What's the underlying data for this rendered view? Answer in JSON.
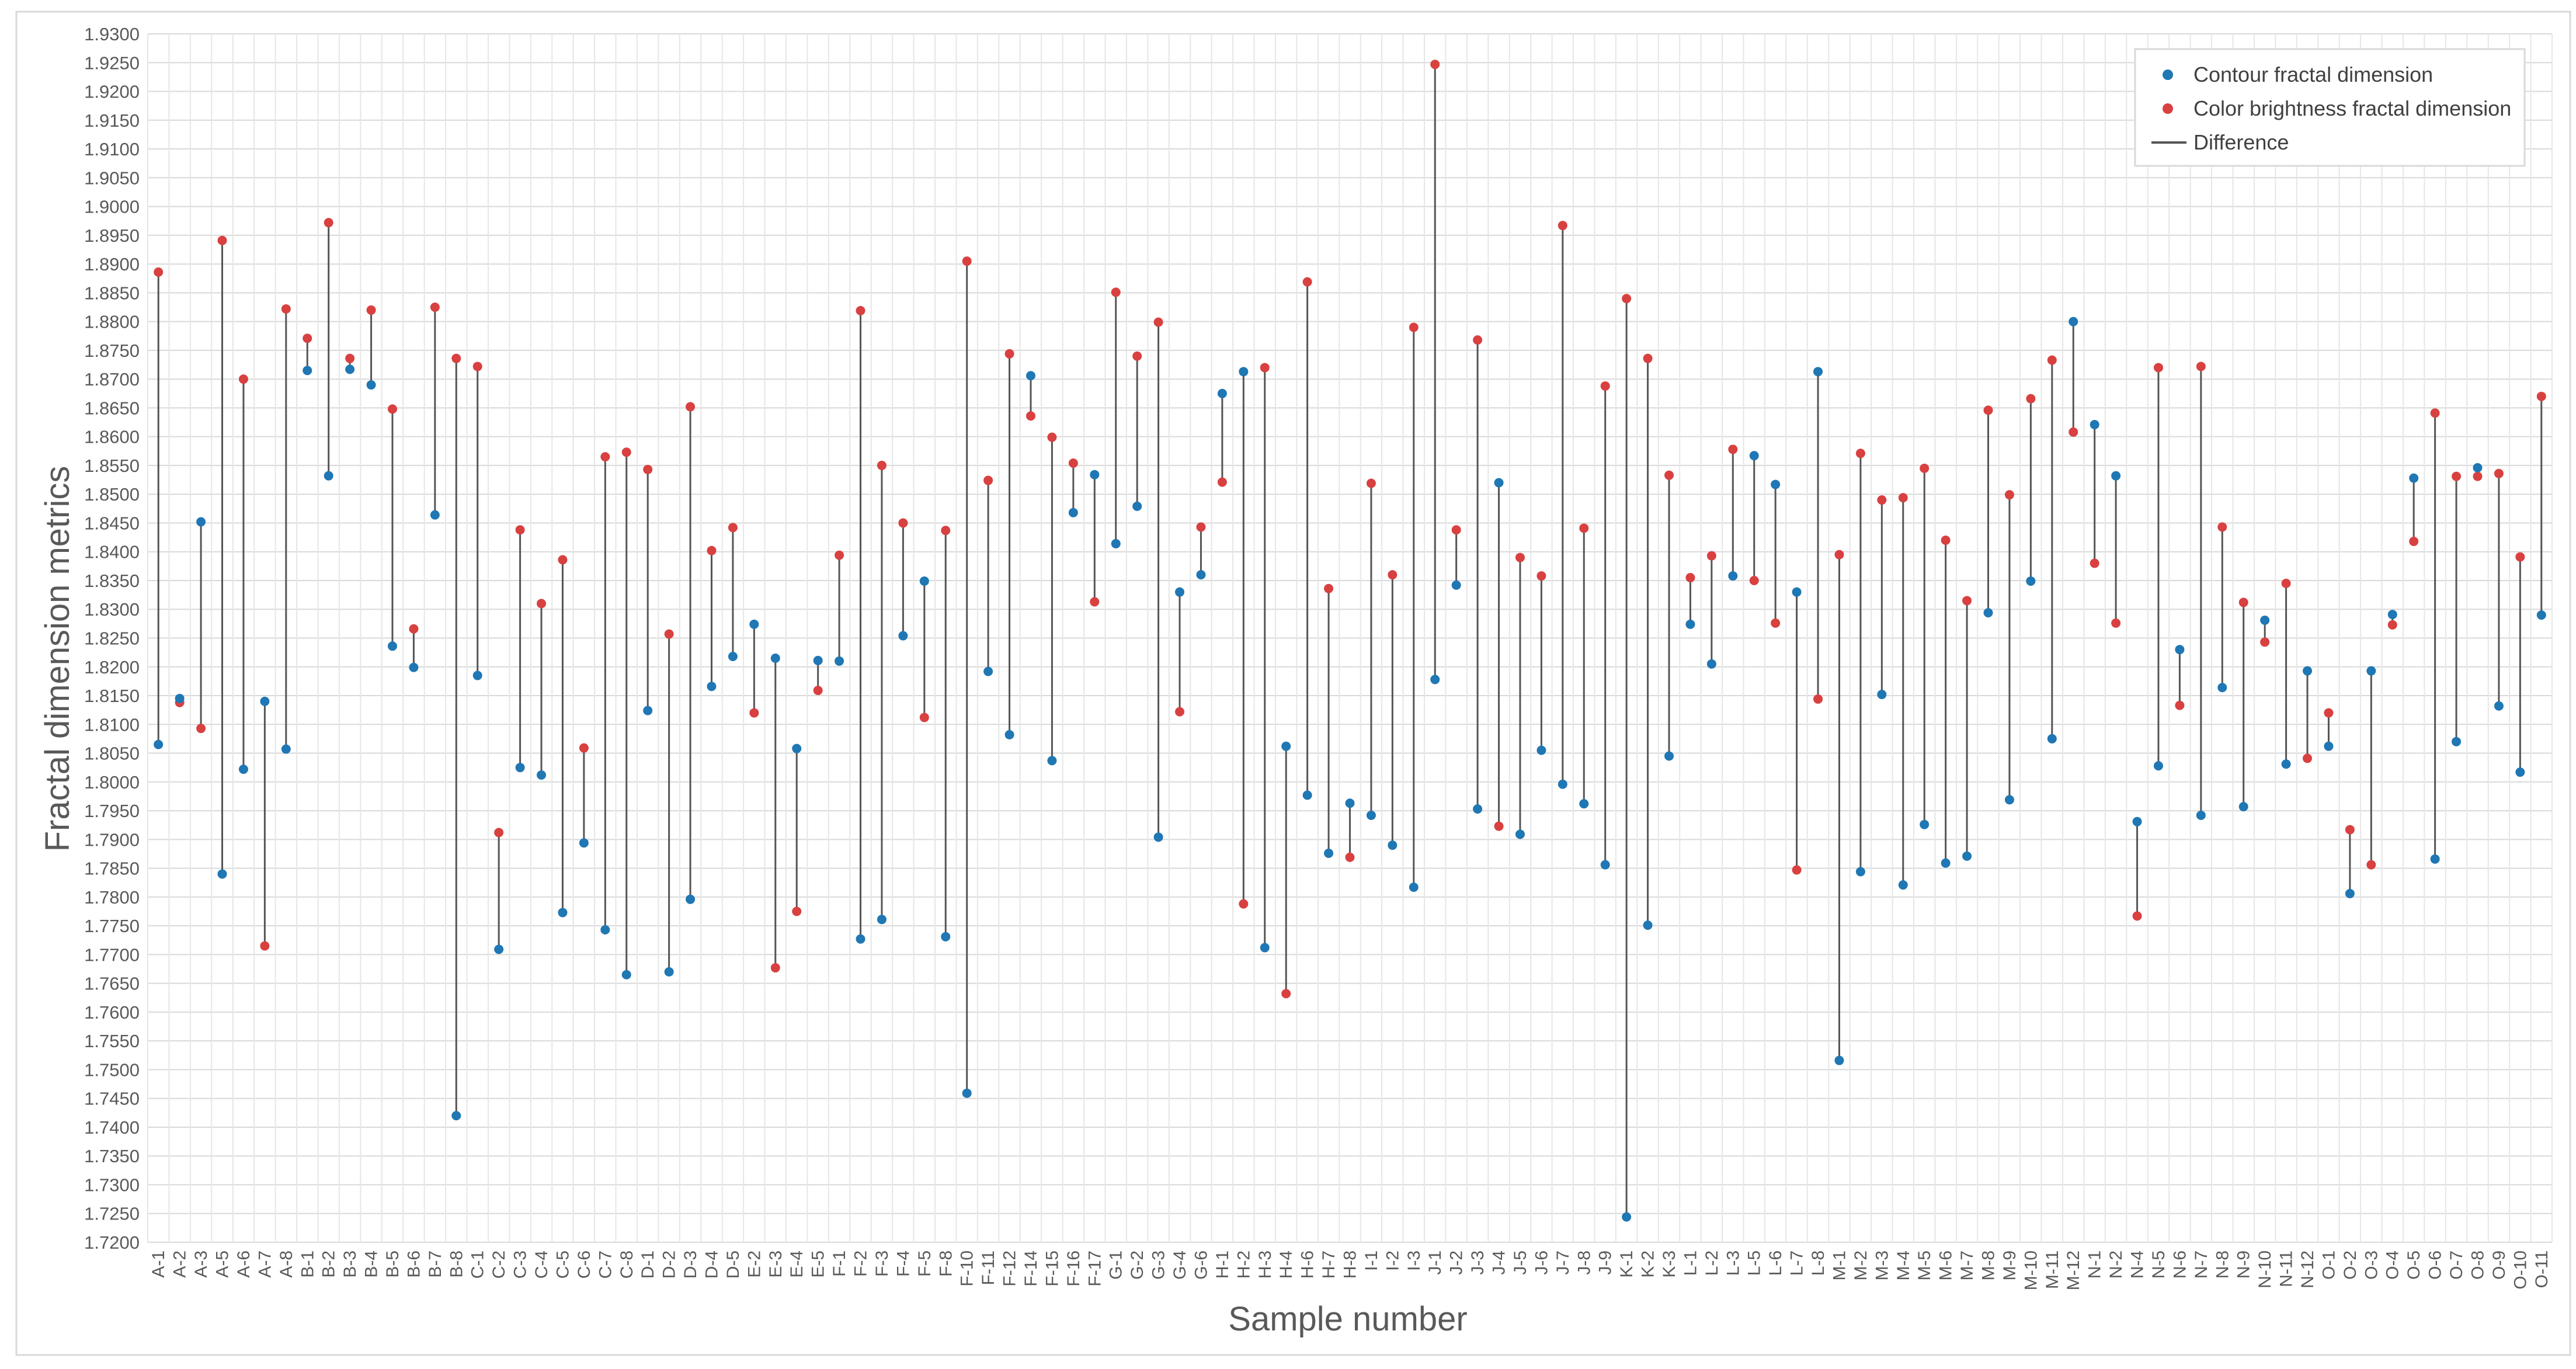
{
  "chart_data": {
    "type": "scatter",
    "title": "",
    "xlabel": "Sample number",
    "ylabel": "Fractal dimension metrics",
    "ylim": [
      1.72,
      1.93
    ],
    "ytick_step": 0.005,
    "ytick_labels": [
      "1.7200",
      "1.7250",
      "1.7300",
      "1.7350",
      "1.7400",
      "1.7450",
      "1.7500",
      "1.7550",
      "1.7600",
      "1.7650",
      "1.7700",
      "1.7750",
      "1.7800",
      "1.7850",
      "1.7900",
      "1.7950",
      "1.8000",
      "1.8050",
      "1.8100",
      "1.8150",
      "1.8200",
      "1.8250",
      "1.8300",
      "1.8350",
      "1.8400",
      "1.8450",
      "1.8500",
      "1.8550",
      "1.8600",
      "1.8650",
      "1.8700",
      "1.8750",
      "1.8800",
      "1.8850",
      "1.8900",
      "1.8950",
      "1.9000",
      "1.9050",
      "1.9100",
      "1.9150",
      "1.9200",
      "1.9250",
      "1.9300"
    ],
    "grid": true,
    "legend_position": "top-right",
    "categories": [
      "A-1",
      "A-2",
      "A-3",
      "A-5",
      "A-6",
      "A-7",
      "A-8",
      "B-1",
      "B-2",
      "B-3",
      "B-4",
      "B-5",
      "B-6",
      "B-7",
      "B-8",
      "C-1",
      "C-2",
      "C-3",
      "C-4",
      "C-5",
      "C-6",
      "C-7",
      "C-8",
      "D-1",
      "D-2",
      "D-3",
      "D-4",
      "D-5",
      "E-2",
      "E-3",
      "E-4",
      "E-5",
      "F-1",
      "F-2",
      "F-3",
      "F-4",
      "F-5",
      "F-8",
      "F-10",
      "F-11",
      "F-12",
      "F-14",
      "F-15",
      "F-16",
      "F-17",
      "G-1",
      "G-2",
      "G-3",
      "G-4",
      "G-6",
      "H-1",
      "H-2",
      "H-3",
      "H-4",
      "H-6",
      "H-7",
      "H-8",
      "I-1",
      "I-2",
      "I-3",
      "J-1",
      "J-2",
      "J-3",
      "J-4",
      "J-5",
      "J-6",
      "J-7",
      "J-8",
      "J-9",
      "K-1",
      "K-2",
      "K-3",
      "L-1",
      "L-2",
      "L-3",
      "L-5",
      "L-6",
      "L-7",
      "L-8",
      "M-1",
      "M-2",
      "M-3",
      "M-4",
      "M-5",
      "M-6",
      "M-7",
      "M-8",
      "M-9",
      "M-10",
      "M-11",
      "M-12",
      "N-1",
      "N-2",
      "N-4",
      "N-5",
      "N-6",
      "N-7",
      "N-8",
      "N-9",
      "N-10",
      "N-11",
      "N-12",
      "O-1",
      "O-2",
      "O-3",
      "O-4",
      "O-5",
      "O-6",
      "O-7",
      "O-8",
      "O-9",
      "O-10",
      "O-11"
    ],
    "series": [
      {
        "name": "Contour fractal dimension",
        "color": "#1f77b4",
        "marker": "circle",
        "values": [
          1.8065,
          1.8145,
          1.8452,
          1.784,
          1.8022,
          1.814,
          1.8057,
          1.8715,
          1.8532,
          1.8717,
          1.869,
          1.8236,
          1.8199,
          1.8464,
          1.742,
          1.8185,
          1.7709,
          1.8025,
          1.8012,
          1.7773,
          1.7894,
          1.7743,
          1.7665,
          1.8124,
          1.767,
          1.7796,
          1.8166,
          1.8218,
          1.8274,
          1.8215,
          1.8058,
          1.8211,
          1.821,
          1.7727,
          1.7761,
          1.8254,
          1.8349,
          1.7731,
          1.7459,
          1.8192,
          1.8082,
          1.8706,
          1.8037,
          1.8468,
          1.8534,
          1.8414,
          1.8479,
          1.7904,
          1.833,
          1.836,
          1.8675,
          1.8713,
          1.7712,
          1.8062,
          1.7977,
          1.7876,
          1.7963,
          1.7942,
          1.789,
          1.7817,
          1.8178,
          1.8342,
          1.7953,
          1.852,
          1.7909,
          1.8055,
          1.7996,
          1.7962,
          1.7856,
          1.7244,
          1.7751,
          1.8045,
          1.8274,
          1.8205,
          1.8358,
          1.8567,
          1.8517,
          1.833,
          1.8713,
          1.7516,
          1.7844,
          1.8152,
          1.7821,
          1.7926,
          1.7859,
          1.7871,
          1.8294,
          1.7969,
          1.8349,
          1.8075,
          1.88,
          1.8621,
          1.8532,
          1.7931,
          1.8028,
          1.823,
          1.7942,
          1.8164,
          1.7957,
          1.8281,
          1.8031,
          1.8193,
          1.8062,
          1.7806,
          1.8193,
          1.8291,
          1.8528,
          1.7866,
          1.807,
          1.8546,
          1.8132,
          1.8017,
          1.829
        ]
      },
      {
        "name": "Color brightness fractal dimension",
        "color": "#d94040",
        "marker": "circle",
        "values": [
          1.8886,
          1.8138,
          1.8093,
          1.8941,
          1.87,
          1.7715,
          1.8822,
          1.8771,
          1.8972,
          1.8736,
          1.882,
          1.8648,
          1.8266,
          1.8825,
          1.8736,
          1.8722,
          1.7912,
          1.8438,
          1.831,
          1.8386,
          1.8059,
          1.8565,
          1.8573,
          1.8543,
          1.8257,
          1.8652,
          1.8402,
          1.8442,
          1.812,
          1.7677,
          1.7775,
          1.8159,
          1.8394,
          1.8819,
          1.855,
          1.845,
          1.8112,
          1.8437,
          1.8905,
          1.8524,
          1.8744,
          1.8636,
          1.8599,
          1.8554,
          1.8313,
          1.8851,
          1.874,
          1.8799,
          1.8122,
          1.8443,
          1.8521,
          1.7788,
          1.872,
          1.7632,
          1.8869,
          1.8336,
          1.7869,
          1.8519,
          1.836,
          1.879,
          1.9247,
          1.8438,
          1.8768,
          1.7923,
          1.839,
          1.8358,
          1.8967,
          1.8441,
          1.8688,
          1.884,
          1.8736,
          1.8533,
          1.8355,
          1.8393,
          1.8578,
          1.835,
          1.8276,
          1.7847,
          1.8144,
          1.8395,
          1.8571,
          1.849,
          1.8494,
          1.8545,
          1.842,
          1.8315,
          1.8646,
          1.8499,
          1.8666,
          1.8733,
          1.8608,
          1.838,
          1.8276,
          1.7767,
          1.872,
          1.8133,
          1.8722,
          1.8443,
          1.8312,
          1.8243,
          1.8345,
          1.8041,
          1.812,
          1.7917,
          1.7856,
          1.8273,
          1.8418,
          1.8641,
          1.8531,
          1.8531,
          1.8536,
          1.8391,
          1.867
        ]
      }
    ],
    "difference_series": {
      "name": "Difference",
      "color": "#555555",
      "type": "vertical-line"
    }
  }
}
